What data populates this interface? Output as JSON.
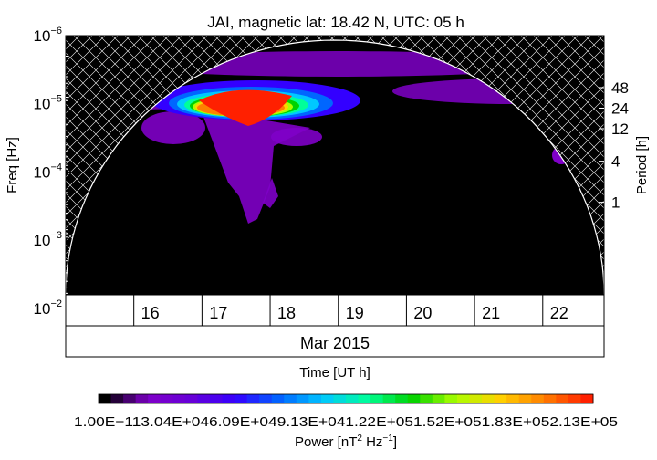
{
  "chart_data": {
    "type": "heatmap",
    "title": "JAI, magnetic lat:   18.42 N, UTC:  05 h",
    "ylabel": "Freq [Hz]",
    "y2label": "Period [h]",
    "xlabel": "Time [UT h]",
    "x_month_label": "Mar 2015",
    "x_range": [
      15.0,
      22.9
    ],
    "y_log_range": [
      -6,
      -2.2
    ],
    "y_scale": "log",
    "y_ticks": [
      {
        "v": -6,
        "mant": "10",
        "exp": "−6"
      },
      {
        "v": -5,
        "mant": "10",
        "exp": "−5"
      },
      {
        "v": -4,
        "mant": "10",
        "exp": "−4"
      },
      {
        "v": -3,
        "mant": "10",
        "exp": "−3"
      },
      {
        "v": -2,
        "mant": "10",
        "exp": "−2"
      }
    ],
    "period_ticks": [
      {
        "hours": 48,
        "label": "48"
      },
      {
        "hours": 24,
        "label": "24"
      },
      {
        "hours": 12,
        "label": "12"
      },
      {
        "hours": 4,
        "label": "4"
      },
      {
        "hours": 1,
        "label": "1"
      }
    ],
    "x_ticks": [
      {
        "v": 16,
        "label": "16"
      },
      {
        "v": 17,
        "label": "17"
      },
      {
        "v": 18,
        "label": "18"
      },
      {
        "v": 19,
        "label": "19"
      },
      {
        "v": 20,
        "label": "20"
      },
      {
        "v": 21,
        "label": "21"
      },
      {
        "v": 22,
        "label": "22"
      }
    ],
    "colorbar": {
      "label": "Power [nT² Hz⁻¹]",
      "labels_text": "1.00E−113.04E+046.09E+049.13E+041.22E+051.52E+051.83E+052.13E+05",
      "colors": [
        "#000000",
        "#7f00c8",
        "#6600d8",
        "#3300ff",
        "#0066ff",
        "#00c8ff",
        "#00ff99",
        "#00d200",
        "#aaff00",
        "#ffd200",
        "#ff8000",
        "#ff2000"
      ]
    },
    "cone_of_influence": "hatched",
    "max_power_region": {
      "day_range": [
        17.0,
        17.9
      ],
      "freq_log_range": [
        -5.45,
        -5.05
      ]
    }
  }
}
